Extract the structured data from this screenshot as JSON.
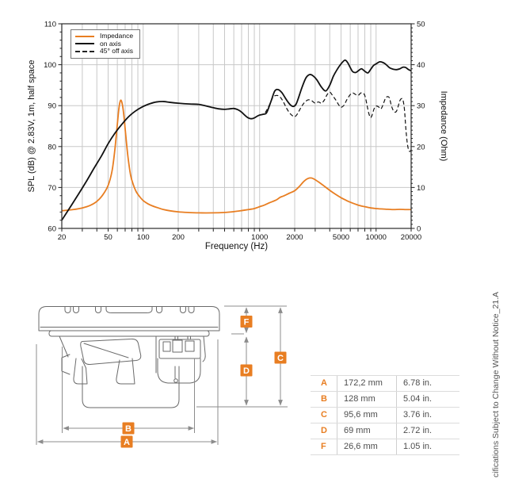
{
  "colors": {
    "accent": "#E87E22",
    "curve_black": "#111111",
    "grid": "#c8c8c8",
    "border": "#2a2a2a",
    "dim_gray": "#8c8c8c"
  },
  "chart_data": {
    "type": "line",
    "x_scale": "log",
    "xlim": [
      20,
      20000
    ],
    "ylim_left": [
      60,
      110
    ],
    "ylim_right": [
      0,
      50
    ],
    "xlabel": "Frequency (Hz)",
    "ylabel_left": "SPL (dB) @ 2.83V, 1m, half space",
    "ylabel_right": "Impedance (Ohm)",
    "x_tick_labels": [
      20,
      50,
      100,
      200,
      1000,
      2000,
      5000,
      10000,
      20000
    ],
    "y_ticks_left": [
      60,
      70,
      80,
      90,
      100,
      110
    ],
    "y_ticks_right": [
      0,
      10,
      20,
      30,
      40,
      50
    ],
    "grid": true,
    "legend_position": "top-left",
    "series": [
      {
        "name": "Impedance",
        "axis": "right",
        "unit": "Ohm",
        "color": "#E87E22",
        "style": "solid",
        "points": [
          [
            20,
            4.3
          ],
          [
            25,
            4.6
          ],
          [
            30,
            5.0
          ],
          [
            35,
            5.6
          ],
          [
            40,
            6.6
          ],
          [
            45,
            8.2
          ],
          [
            50,
            10.5
          ],
          [
            54,
            14
          ],
          [
            57,
            19
          ],
          [
            60,
            25.5
          ],
          [
            62,
            29.5
          ],
          [
            64,
            31.3
          ],
          [
            66,
            30.5
          ],
          [
            68,
            28
          ],
          [
            71,
            22.5
          ],
          [
            74,
            17.5
          ],
          [
            78,
            13
          ],
          [
            82,
            10.8
          ],
          [
            87,
            9.0
          ],
          [
            93,
            7.8
          ],
          [
            100,
            6.8
          ],
          [
            110,
            6.0
          ],
          [
            120,
            5.5
          ],
          [
            135,
            5.0
          ],
          [
            150,
            4.6
          ],
          [
            170,
            4.3
          ],
          [
            200,
            4.05
          ],
          [
            240,
            3.9
          ],
          [
            300,
            3.8
          ],
          [
            400,
            3.8
          ],
          [
            500,
            3.9
          ],
          [
            600,
            4.1
          ],
          [
            700,
            4.35
          ],
          [
            800,
            4.6
          ],
          [
            900,
            4.85
          ],
          [
            1000,
            5.3
          ],
          [
            1100,
            5.7
          ],
          [
            1200,
            6.2
          ],
          [
            1300,
            6.6
          ],
          [
            1400,
            7.0
          ],
          [
            1500,
            7.6
          ],
          [
            1600,
            7.9
          ],
          [
            1800,
            8.6
          ],
          [
            2000,
            9.2
          ],
          [
            2200,
            10.3
          ],
          [
            2400,
            11.5
          ],
          [
            2600,
            12.2
          ],
          [
            2800,
            12.3
          ],
          [
            3000,
            11.9
          ],
          [
            3300,
            11.1
          ],
          [
            3600,
            10.3
          ],
          [
            4000,
            9.3
          ],
          [
            4500,
            8.3
          ],
          [
            5000,
            7.5
          ],
          [
            5500,
            6.9
          ],
          [
            6000,
            6.4
          ],
          [
            7000,
            5.7
          ],
          [
            8000,
            5.3
          ],
          [
            9000,
            5.0
          ],
          [
            10000,
            4.85
          ],
          [
            12000,
            4.7
          ],
          [
            14000,
            4.6
          ],
          [
            16000,
            4.65
          ],
          [
            18000,
            4.6
          ],
          [
            20000,
            4.6
          ]
        ]
      },
      {
        "name": "on axis",
        "axis": "left",
        "unit": "dB",
        "color": "#111111",
        "style": "solid",
        "points": [
          [
            20,
            62
          ],
          [
            24,
            65.5
          ],
          [
            28,
            68.5
          ],
          [
            33,
            71.8
          ],
          [
            38,
            74.8
          ],
          [
            44,
            77.8
          ],
          [
            50,
            80.7
          ],
          [
            57,
            83.2
          ],
          [
            65,
            85.3
          ],
          [
            75,
            87.3
          ],
          [
            85,
            88.6
          ],
          [
            100,
            89.8
          ],
          [
            115,
            90.5
          ],
          [
            130,
            90.9
          ],
          [
            150,
            91.0
          ],
          [
            170,
            90.8
          ],
          [
            200,
            90.6
          ],
          [
            250,
            90.4
          ],
          [
            300,
            90.3
          ],
          [
            350,
            89.9
          ],
          [
            400,
            89.5
          ],
          [
            450,
            89.2
          ],
          [
            500,
            89.1
          ],
          [
            550,
            89.2
          ],
          [
            600,
            89.3
          ],
          [
            650,
            89.0
          ],
          [
            700,
            88.4
          ],
          [
            750,
            87.6
          ],
          [
            800,
            87.0
          ],
          [
            850,
            86.8
          ],
          [
            900,
            87.0
          ],
          [
            950,
            87.4
          ],
          [
            1000,
            87.7
          ],
          [
            1080,
            87.9
          ],
          [
            1150,
            88.3
          ],
          [
            1250,
            91.0
          ],
          [
            1350,
            93.6
          ],
          [
            1450,
            93.9
          ],
          [
            1550,
            93.2
          ],
          [
            1650,
            92.0
          ],
          [
            1750,
            90.9
          ],
          [
            1850,
            90.1
          ],
          [
            1950,
            89.8
          ],
          [
            2050,
            90.3
          ],
          [
            2150,
            91.8
          ],
          [
            2300,
            94.3
          ],
          [
            2500,
            96.8
          ],
          [
            2700,
            97.6
          ],
          [
            2900,
            97.2
          ],
          [
            3100,
            96.3
          ],
          [
            3400,
            94.5
          ],
          [
            3700,
            93.6
          ],
          [
            4000,
            95.0
          ],
          [
            4300,
            97.2
          ],
          [
            4600,
            98.7
          ],
          [
            5000,
            100.2
          ],
          [
            5400,
            101.1
          ],
          [
            5700,
            100.5
          ],
          [
            6000,
            99.3
          ],
          [
            6300,
            98.3
          ],
          [
            6700,
            98.1
          ],
          [
            7100,
            98.6
          ],
          [
            7500,
            99.0
          ],
          [
            8000,
            98.4
          ],
          [
            8500,
            98.0
          ],
          [
            9000,
            98.9
          ],
          [
            9500,
            99.8
          ],
          [
            10000,
            100.2
          ],
          [
            10700,
            100.7
          ],
          [
            11300,
            100.6
          ],
          [
            12000,
            100.2
          ],
          [
            13000,
            99.3
          ],
          [
            14000,
            98.9
          ],
          [
            15000,
            98.8
          ],
          [
            16000,
            99.0
          ],
          [
            17000,
            99.4
          ],
          [
            18000,
            99.3
          ],
          [
            19000,
            98.8
          ],
          [
            20000,
            98.5
          ]
        ]
      },
      {
        "name": "45° off axis",
        "axis": "left",
        "unit": "dB",
        "color": "#111111",
        "style": "dashed",
        "points": [
          [
            1000,
            87.7
          ],
          [
            1100,
            88.1
          ],
          [
            1200,
            89.9
          ],
          [
            1300,
            92.0
          ],
          [
            1400,
            92.5
          ],
          [
            1500,
            92.1
          ],
          [
            1600,
            90.9
          ],
          [
            1700,
            89.4
          ],
          [
            1800,
            88.3
          ],
          [
            1900,
            87.6
          ],
          [
            2000,
            87.3
          ],
          [
            2100,
            87.9
          ],
          [
            2250,
            89.4
          ],
          [
            2400,
            90.6
          ],
          [
            2600,
            91.4
          ],
          [
            2800,
            91.2
          ],
          [
            3000,
            90.6
          ],
          [
            3200,
            90.9
          ],
          [
            3400,
            90.6
          ],
          [
            3600,
            91.4
          ],
          [
            3800,
            92.7
          ],
          [
            4000,
            93.3
          ],
          [
            4200,
            92.6
          ],
          [
            4500,
            91.4
          ],
          [
            4800,
            90.1
          ],
          [
            5000,
            89.6
          ],
          [
            5300,
            90.1
          ],
          [
            5600,
            91.4
          ],
          [
            6000,
            92.7
          ],
          [
            6300,
            93.1
          ],
          [
            6600,
            92.8
          ],
          [
            7000,
            92.5
          ],
          [
            7400,
            93.1
          ],
          [
            7800,
            93.0
          ],
          [
            8100,
            92.0
          ],
          [
            8400,
            89.8
          ],
          [
            8700,
            87.9
          ],
          [
            9000,
            87.1
          ],
          [
            9300,
            87.9
          ],
          [
            9600,
            89.2
          ],
          [
            10000,
            89.9
          ],
          [
            10500,
            89.7
          ],
          [
            11000,
            89.2
          ],
          [
            11500,
            90.3
          ],
          [
            12000,
            91.7
          ],
          [
            12500,
            92.2
          ],
          [
            13000,
            91.9
          ],
          [
            13500,
            90.1
          ],
          [
            14000,
            88.9
          ],
          [
            14500,
            88.4
          ],
          [
            15000,
            88.7
          ],
          [
            15500,
            89.9
          ],
          [
            16000,
            91.2
          ],
          [
            16500,
            91.7
          ],
          [
            17000,
            91.4
          ],
          [
            17500,
            89.2
          ],
          [
            18000,
            84.5
          ],
          [
            18500,
            81
          ],
          [
            19000,
            79.2
          ],
          [
            19500,
            78.8
          ],
          [
            20000,
            79.2
          ]
        ]
      }
    ]
  },
  "drawing": {
    "labels": {
      "a": "A",
      "b": "B",
      "c": "C",
      "d": "D",
      "f": "F"
    }
  },
  "dimensions": {
    "rows": [
      {
        "key": "A",
        "mm": "172,2 mm",
        "in": "6.78 in."
      },
      {
        "key": "B",
        "mm": "128 mm",
        "in": "5.04 in."
      },
      {
        "key": "C",
        "mm": "95,6 mm",
        "in": "3.76 in."
      },
      {
        "key": "D",
        "mm": "69 mm",
        "in": "2.72 in."
      },
      {
        "key": "F",
        "mm": "26,6 mm",
        "in": "1.05 in."
      }
    ]
  },
  "side_note": "cifications Subject to Change Without Notice_21.A"
}
